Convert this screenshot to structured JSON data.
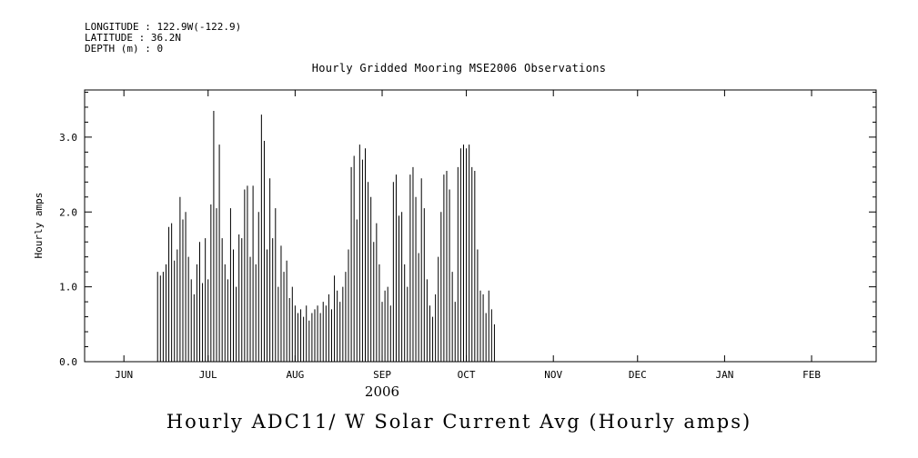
{
  "colors": {
    "foreground": "#000000",
    "background": "#ffffff"
  },
  "header": {
    "line1": "LONGITUDE : 122.9W(-122.9)",
    "line2": "LATITUDE : 36.2N",
    "line3": "DEPTH (m) : 0"
  },
  "chart_data": {
    "type": "line",
    "title": "Hourly Gridded Mooring MSE2006 Observations",
    "bottom_title": "Hourly ADC11/ W Solar Current Avg (Hourly amps)",
    "ylabel": "Hourly amps",
    "xlabel_year": "2006",
    "ylim": [
      0,
      3.63
    ],
    "yticks": [
      0.0,
      1.0,
      2.0,
      3.0
    ],
    "ytick_labels": [
      "0.0",
      "1.0",
      "2.0",
      "3.0"
    ],
    "y_minor_step": 0.2,
    "x_months": [
      "JUN",
      "JUL",
      "AUG",
      "SEP",
      "OCT",
      "NOV",
      "DEC",
      "JAN",
      "FEB"
    ],
    "x_month_days": [
      0,
      30,
      61,
      92,
      122,
      153,
      183,
      214,
      245
    ],
    "x_domain_days": [
      -14,
      268
    ],
    "grid": false,
    "legend": "none",
    "series_description": "Daily peak values (amps) of hourly solar current spikes; data span ~Jun 13 to ~Oct 11, 2006; zero (night) between daily spikes",
    "spikes_start_day": 12,
    "daily_peaks": [
      1.2,
      1.15,
      1.2,
      1.3,
      1.8,
      1.85,
      1.35,
      1.5,
      2.2,
      1.9,
      2.0,
      1.4,
      1.1,
      0.9,
      1.3,
      1.6,
      1.05,
      1.65,
      1.1,
      2.1,
      3.35,
      2.05,
      2.9,
      1.65,
      1.3,
      1.1,
      2.05,
      1.5,
      1.0,
      1.7,
      1.65,
      2.3,
      2.35,
      1.4,
      2.35,
      1.3,
      2.0,
      3.3,
      2.95,
      1.5,
      2.45,
      1.65,
      2.05,
      1.0,
      1.55,
      1.2,
      1.35,
      0.85,
      1.0,
      0.75,
      0.65,
      0.7,
      0.6,
      0.75,
      0.55,
      0.65,
      0.7,
      0.75,
      0.65,
      0.8,
      0.75,
      0.9,
      0.7,
      1.15,
      0.95,
      0.8,
      1.0,
      1.2,
      1.5,
      2.6,
      2.75,
      1.9,
      2.9,
      2.7,
      2.85,
      2.4,
      2.2,
      1.6,
      1.85,
      1.3,
      0.8,
      0.95,
      1.0,
      0.75,
      2.4,
      2.5,
      1.95,
      2.0,
      1.3,
      1.0,
      2.5,
      2.6,
      2.2,
      1.45,
      2.45,
      2.05,
      1.1,
      0.75,
      0.6,
      0.9,
      1.4,
      2.0,
      2.5,
      2.55,
      2.3,
      1.2,
      0.8,
      2.6,
      2.85,
      2.9,
      2.85,
      2.9,
      2.6,
      2.55,
      1.5,
      0.95,
      0.9,
      0.65,
      0.95,
      0.7,
      0.5
    ]
  }
}
